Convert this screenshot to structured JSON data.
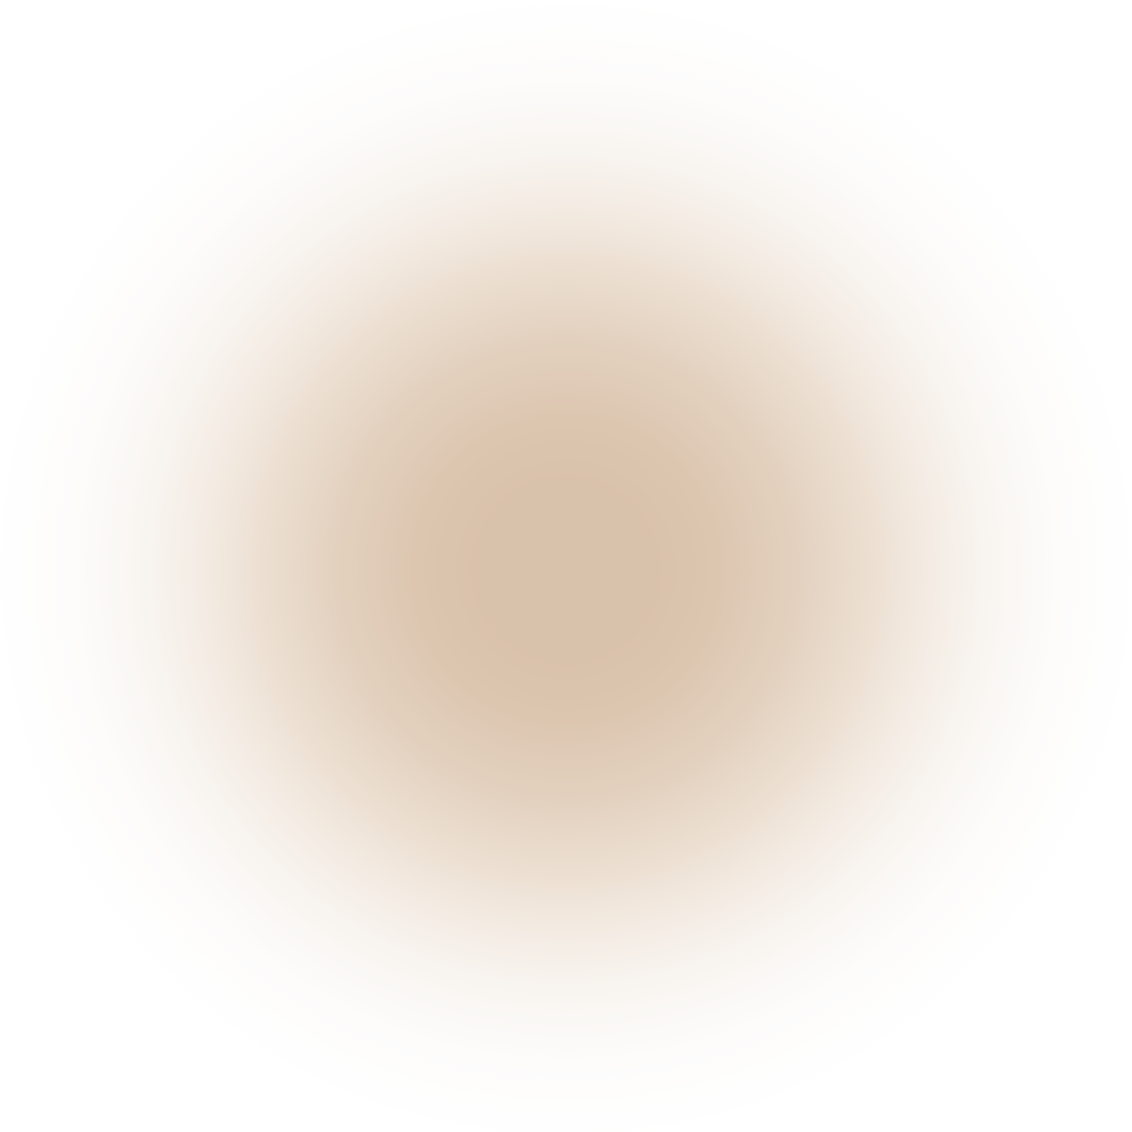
{
  "background": {
    "style": "radial-gradient",
    "center_color": "#d9c2ab",
    "edge_color": "#ffffff"
  }
}
